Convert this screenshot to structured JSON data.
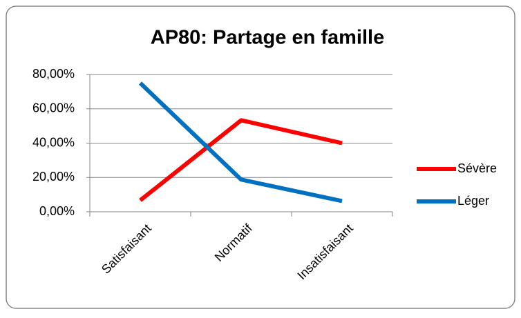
{
  "chart_data": {
    "type": "line",
    "title": "AP80: Partage en famille",
    "categories": [
      "Satisfaisant",
      "Normatif",
      "Insatisfaisant"
    ],
    "series": [
      {
        "name": "Sévère",
        "color": "#ff0000",
        "values": [
          6.67,
          53.33,
          40
        ]
      },
      {
        "name": "Léger",
        "color": "#0070c0",
        "values": [
          75,
          18.75,
          6.25
        ]
      }
    ],
    "ylim": [
      0,
      80
    ],
    "yticks": [
      {
        "value": 0,
        "label": "0,00%"
      },
      {
        "value": 20,
        "label": "20,00%"
      },
      {
        "value": 40,
        "label": "40,00%"
      },
      {
        "value": 60,
        "label": "60,00%"
      },
      {
        "value": 80,
        "label": "80,00%"
      }
    ],
    "grid": true,
    "legend": "right"
  }
}
